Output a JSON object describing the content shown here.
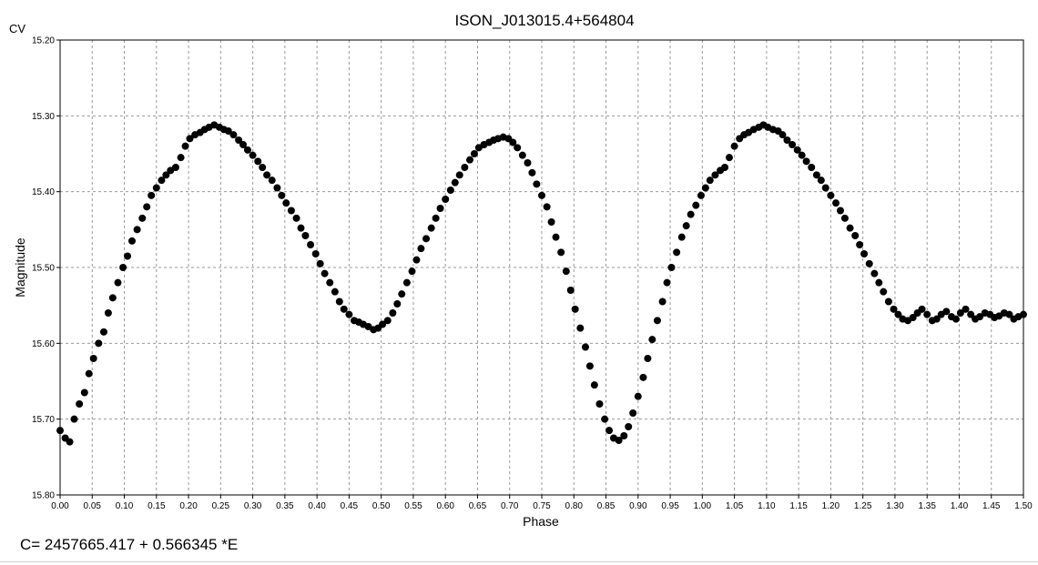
{
  "window": {
    "corner_label": "CV",
    "ephemeris": "C= 2457665.417 + 0.566345 *E"
  },
  "chart_data": {
    "type": "scatter",
    "title": "ISON_J013015.4+564804",
    "xlabel": "Phase",
    "ylabel": "Magnitude",
    "xlim": [
      0.0,
      1.5
    ],
    "ylim": [
      15.2,
      15.8
    ],
    "y_inverted": true,
    "grid": true,
    "marker_color": "#000000",
    "x_ticks": [
      "0.00",
      "0.05",
      "0.10",
      "0.15",
      "0.20",
      "0.25",
      "0.30",
      "0.35",
      "0.40",
      "0.45",
      "0.50",
      "0.55",
      "0.60",
      "0.65",
      "0.70",
      "0.75",
      "0.80",
      "0.85",
      "0.90",
      "0.95",
      "1.00",
      "1.05",
      "1.10",
      "1.15",
      "1.20",
      "1.25",
      "1.30",
      "1.35",
      "1.40",
      "1.45",
      "1.50"
    ],
    "y_ticks": [
      "15.20",
      "15.30",
      "15.40",
      "15.50",
      "15.60",
      "15.70",
      "15.80"
    ],
    "series": [
      {
        "points": [
          [
            0.0,
            15.715
          ],
          [
            0.008,
            15.725
          ],
          [
            0.015,
            15.73
          ],
          [
            0.022,
            15.7
          ],
          [
            0.03,
            15.68
          ],
          [
            0.038,
            15.665
          ],
          [
            0.045,
            15.64
          ],
          [
            0.052,
            15.62
          ],
          [
            0.06,
            15.6
          ],
          [
            0.068,
            15.585
          ],
          [
            0.075,
            15.56
          ],
          [
            0.082,
            15.54
          ],
          [
            0.09,
            15.52
          ],
          [
            0.098,
            15.5
          ],
          [
            0.105,
            15.485
          ],
          [
            0.112,
            15.465
          ],
          [
            0.12,
            15.45
          ],
          [
            0.128,
            15.435
          ],
          [
            0.135,
            15.42
          ],
          [
            0.142,
            15.405
          ],
          [
            0.15,
            15.395
          ],
          [
            0.158,
            15.385
          ],
          [
            0.165,
            15.378
          ],
          [
            0.172,
            15.372
          ],
          [
            0.18,
            15.368
          ],
          [
            0.188,
            15.355
          ],
          [
            0.195,
            15.34
          ],
          [
            0.202,
            15.33
          ],
          [
            0.21,
            15.325
          ],
          [
            0.218,
            15.322
          ],
          [
            0.225,
            15.318
          ],
          [
            0.232,
            15.315
          ],
          [
            0.24,
            15.312
          ],
          [
            0.248,
            15.315
          ],
          [
            0.255,
            15.318
          ],
          [
            0.262,
            15.32
          ],
          [
            0.27,
            15.325
          ],
          [
            0.278,
            15.332
          ],
          [
            0.285,
            15.338
          ],
          [
            0.292,
            15.345
          ],
          [
            0.3,
            15.352
          ],
          [
            0.308,
            15.36
          ],
          [
            0.315,
            15.368
          ],
          [
            0.322,
            15.378
          ],
          [
            0.33,
            15.385
          ],
          [
            0.338,
            15.395
          ],
          [
            0.345,
            15.405
          ],
          [
            0.352,
            15.415
          ],
          [
            0.36,
            15.425
          ],
          [
            0.368,
            15.435
          ],
          [
            0.375,
            15.448
          ],
          [
            0.382,
            15.458
          ],
          [
            0.39,
            15.47
          ],
          [
            0.398,
            15.482
          ],
          [
            0.405,
            15.495
          ],
          [
            0.412,
            15.508
          ],
          [
            0.42,
            15.52
          ],
          [
            0.428,
            15.532
          ],
          [
            0.435,
            15.545
          ],
          [
            0.442,
            15.555
          ],
          [
            0.45,
            15.562
          ],
          [
            0.458,
            15.57
          ],
          [
            0.465,
            15.572
          ],
          [
            0.472,
            15.575
          ],
          [
            0.48,
            15.578
          ],
          [
            0.488,
            15.582
          ],
          [
            0.495,
            15.58
          ],
          [
            0.502,
            15.575
          ],
          [
            0.51,
            15.57
          ],
          [
            0.518,
            15.56
          ],
          [
            0.525,
            15.548
          ],
          [
            0.532,
            15.535
          ],
          [
            0.54,
            15.52
          ],
          [
            0.548,
            15.505
          ],
          [
            0.555,
            15.49
          ],
          [
            0.562,
            15.475
          ],
          [
            0.57,
            15.462
          ],
          [
            0.578,
            15.448
          ],
          [
            0.585,
            15.435
          ],
          [
            0.592,
            15.422
          ],
          [
            0.6,
            15.41
          ],
          [
            0.608,
            15.398
          ],
          [
            0.615,
            15.388
          ],
          [
            0.622,
            15.378
          ],
          [
            0.63,
            15.368
          ],
          [
            0.638,
            15.358
          ],
          [
            0.645,
            15.35
          ],
          [
            0.652,
            15.342
          ],
          [
            0.66,
            15.338
          ],
          [
            0.668,
            15.335
          ],
          [
            0.675,
            15.332
          ],
          [
            0.682,
            15.33
          ],
          [
            0.69,
            15.328
          ],
          [
            0.698,
            15.33
          ],
          [
            0.705,
            15.335
          ],
          [
            0.712,
            15.342
          ],
          [
            0.72,
            15.352
          ],
          [
            0.728,
            15.362
          ],
          [
            0.735,
            15.375
          ],
          [
            0.742,
            15.39
          ],
          [
            0.75,
            15.405
          ],
          [
            0.758,
            15.42
          ],
          [
            0.765,
            15.44
          ],
          [
            0.772,
            15.46
          ],
          [
            0.78,
            15.48
          ],
          [
            0.788,
            15.505
          ],
          [
            0.795,
            15.53
          ],
          [
            0.802,
            15.555
          ],
          [
            0.81,
            15.58
          ],
          [
            0.818,
            15.605
          ],
          [
            0.825,
            15.63
          ],
          [
            0.832,
            15.655
          ],
          [
            0.84,
            15.68
          ],
          [
            0.848,
            15.7
          ],
          [
            0.855,
            15.715
          ],
          [
            0.862,
            15.725
          ],
          [
            0.87,
            15.728
          ],
          [
            0.878,
            15.722
          ],
          [
            0.885,
            15.71
          ],
          [
            0.892,
            15.692
          ],
          [
            0.9,
            15.67
          ],
          [
            0.908,
            15.645
          ],
          [
            0.915,
            15.62
          ],
          [
            0.922,
            15.595
          ],
          [
            0.93,
            15.57
          ],
          [
            0.938,
            15.545
          ],
          [
            0.945,
            15.52
          ],
          [
            0.952,
            15.5
          ],
          [
            0.96,
            15.48
          ],
          [
            0.968,
            15.46
          ],
          [
            0.975,
            15.445
          ],
          [
            0.982,
            15.43
          ],
          [
            0.99,
            15.418
          ],
          [
            0.998,
            15.405
          ],
          [
            1.005,
            15.395
          ],
          [
            1.012,
            15.385
          ],
          [
            1.02,
            15.378
          ],
          [
            1.028,
            15.372
          ],
          [
            1.035,
            15.368
          ],
          [
            1.042,
            15.355
          ],
          [
            1.05,
            15.34
          ],
          [
            1.058,
            15.33
          ],
          [
            1.065,
            15.325
          ],
          [
            1.072,
            15.322
          ],
          [
            1.08,
            15.318
          ],
          [
            1.088,
            15.315
          ],
          [
            1.095,
            15.312
          ],
          [
            1.102,
            15.315
          ],
          [
            1.11,
            15.318
          ],
          [
            1.118,
            15.32
          ],
          [
            1.125,
            15.325
          ],
          [
            1.132,
            15.332
          ],
          [
            1.14,
            15.338
          ],
          [
            1.148,
            15.345
          ],
          [
            1.155,
            15.352
          ],
          [
            1.162,
            15.36
          ],
          [
            1.17,
            15.368
          ],
          [
            1.178,
            15.378
          ],
          [
            1.185,
            15.385
          ],
          [
            1.192,
            15.395
          ],
          [
            1.2,
            15.405
          ],
          [
            1.208,
            15.415
          ],
          [
            1.215,
            15.425
          ],
          [
            1.222,
            15.435
          ],
          [
            1.23,
            15.448
          ],
          [
            1.238,
            15.458
          ],
          [
            1.245,
            15.47
          ],
          [
            1.252,
            15.482
          ],
          [
            1.26,
            15.495
          ],
          [
            1.268,
            15.508
          ],
          [
            1.275,
            15.52
          ],
          [
            1.282,
            15.532
          ],
          [
            1.29,
            15.545
          ],
          [
            1.298,
            15.555
          ],
          [
            1.305,
            15.562
          ],
          [
            1.312,
            15.568
          ],
          [
            1.32,
            15.57
          ],
          [
            1.328,
            15.566
          ],
          [
            1.335,
            15.56
          ],
          [
            1.342,
            15.555
          ],
          [
            1.35,
            15.562
          ],
          [
            1.358,
            15.57
          ],
          [
            1.365,
            15.568
          ],
          [
            1.372,
            15.562
          ],
          [
            1.38,
            15.558
          ],
          [
            1.388,
            15.565
          ],
          [
            1.395,
            15.568
          ],
          [
            1.402,
            15.56
          ],
          [
            1.41,
            15.555
          ],
          [
            1.418,
            15.562
          ],
          [
            1.425,
            15.568
          ],
          [
            1.432,
            15.565
          ],
          [
            1.44,
            15.56
          ],
          [
            1.448,
            15.562
          ],
          [
            1.455,
            15.566
          ],
          [
            1.462,
            15.564
          ],
          [
            1.47,
            15.56
          ],
          [
            1.478,
            15.562
          ],
          [
            1.485,
            15.568
          ],
          [
            1.492,
            15.565
          ],
          [
            1.5,
            15.562
          ]
        ]
      }
    ]
  }
}
